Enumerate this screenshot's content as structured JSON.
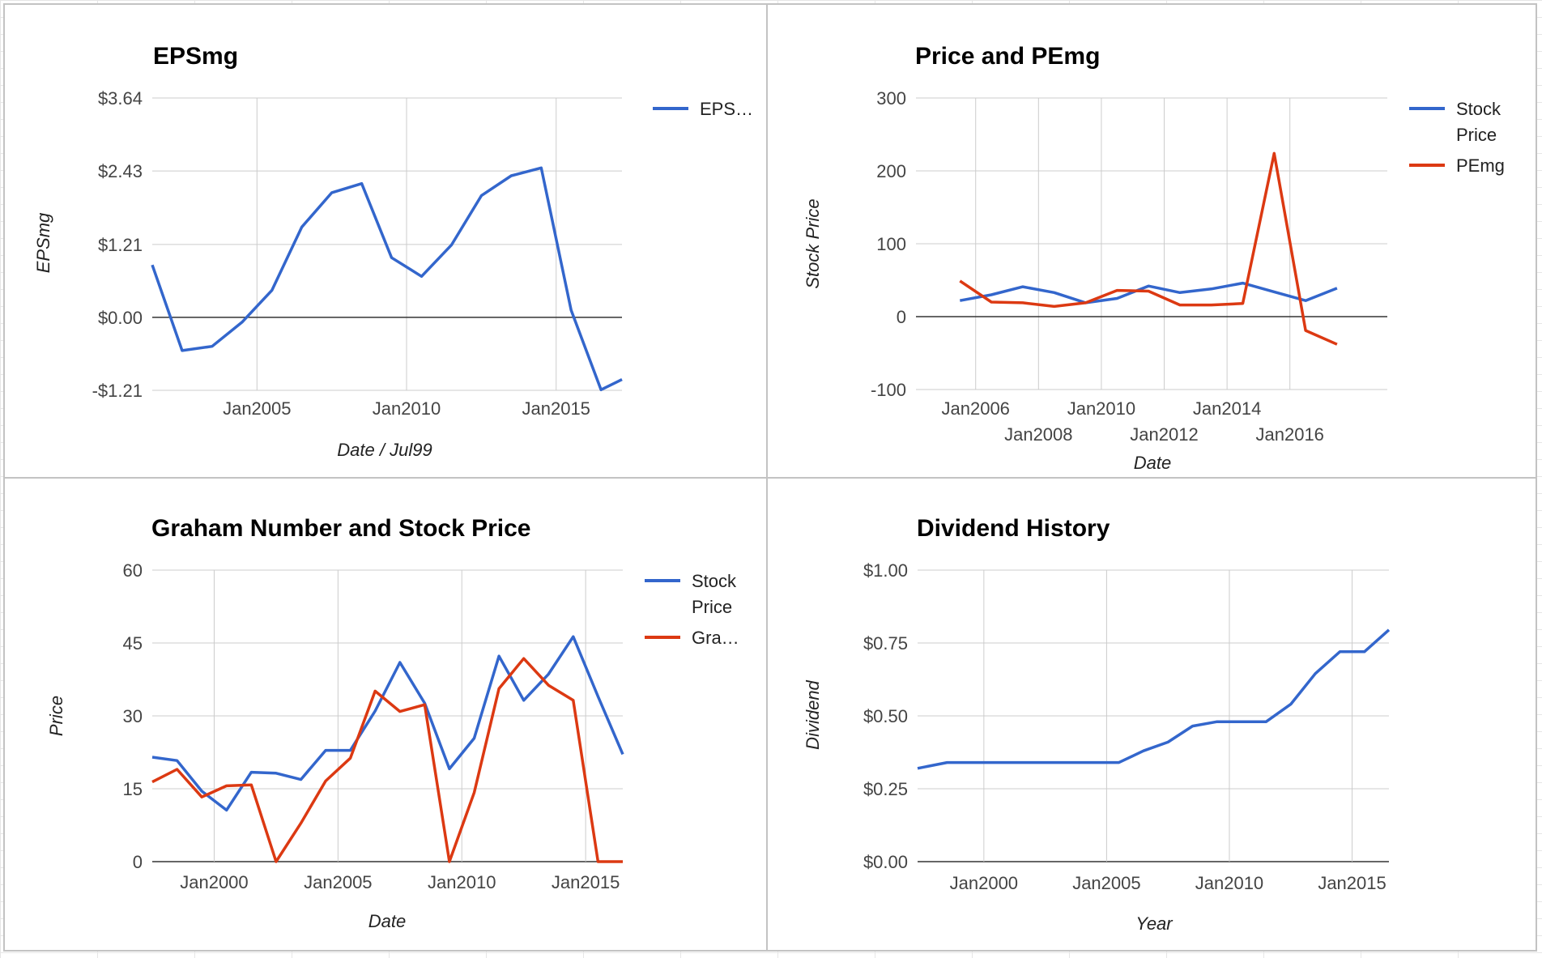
{
  "colors": {
    "blue": "#3366cc",
    "red": "#dc3912",
    "grid": "#cccccc",
    "zero": "#333333"
  },
  "chart_data": [
    {
      "type": "line",
      "title": "EPSmg",
      "xlabel": "Date / Jul99",
      "ylabel": "EPSmg",
      "xlim": [
        2001.5,
        2017.2
      ],
      "ylim": [
        -1.21,
        3.64
      ],
      "yticks": [
        3.64,
        2.43,
        1.21,
        0.0,
        -1.21
      ],
      "ytick_labels": [
        "$3.64",
        "$2.43",
        "$1.21",
        "$0.00",
        "-$1.21"
      ],
      "xticks": [
        2005,
        2010,
        2015
      ],
      "xtick_labels": [
        "Jan2005",
        "Jan2010",
        "Jan2015"
      ],
      "grid": true,
      "legend": "right",
      "series": [
        {
          "name": "EPS…",
          "color": "#3366cc",
          "x": [
            2001.5,
            2002.5,
            2003.5,
            2004.5,
            2005.5,
            2006.5,
            2007.5,
            2008.5,
            2009.5,
            2010.5,
            2011.5,
            2012.5,
            2013.5,
            2014.5,
            2015.5,
            2016.5,
            2017.2
          ],
          "y": [
            0.87,
            -0.55,
            -0.48,
            -0.08,
            0.45,
            1.5,
            2.07,
            2.22,
            0.99,
            0.68,
            1.2,
            2.02,
            2.35,
            2.48,
            0.12,
            -1.2,
            -1.03
          ]
        }
      ]
    },
    {
      "type": "line",
      "title": "Price and PEmg",
      "xlabel": "Date",
      "ylabel": "Stock Price",
      "xlim": [
        2004.1,
        2019.1
      ],
      "ylim": [
        -100,
        300
      ],
      "yticks": [
        300,
        200,
        100,
        0,
        -100
      ],
      "ytick_labels": [
        "300",
        "200",
        "100",
        "0",
        "-100"
      ],
      "xticks": [
        2006,
        2008,
        2010,
        2012,
        2014,
        2016
      ],
      "xtick_labels": [
        "Jan2006",
        "Jan2008",
        "Jan2010",
        "Jan2012",
        "Jan2014",
        "Jan2016"
      ],
      "grid": true,
      "legend": "right",
      "series": [
        {
          "name": "Stock Price",
          "color": "#3366cc",
          "x": [
            2005.5,
            2006.5,
            2007.5,
            2008.5,
            2009.5,
            2010.5,
            2011.5,
            2012.5,
            2013.5,
            2014.5,
            2015.5,
            2016.5,
            2017.5
          ],
          "y": [
            22,
            30,
            41,
            33,
            19,
            25,
            42,
            33,
            38,
            46,
            34,
            22,
            39
          ]
        },
        {
          "name": "PEmg",
          "color": "#dc3912",
          "x": [
            2005.5,
            2006.5,
            2007.5,
            2008.5,
            2009.5,
            2010.5,
            2011.5,
            2012.5,
            2013.5,
            2014.5,
            2015.5,
            2016.5,
            2017.5
          ],
          "y": [
            49,
            20,
            19,
            14,
            19,
            36,
            35,
            16,
            16,
            18,
            224,
            -19,
            -38
          ]
        }
      ]
    },
    {
      "type": "line",
      "title": "Graham Number and Stock Price",
      "xlabel": "Date",
      "ylabel": "Price",
      "xlim": [
        1997.5,
        2016.5
      ],
      "ylim": [
        0,
        60
      ],
      "yticks": [
        60,
        45,
        30,
        15,
        0
      ],
      "ytick_labels": [
        "60",
        "45",
        "30",
        "15",
        "0"
      ],
      "xticks": [
        2000,
        2005,
        2010,
        2015
      ],
      "xtick_labels": [
        "Jan2000",
        "Jan2005",
        "Jan2010",
        "Jan2015"
      ],
      "grid": true,
      "legend": "right",
      "series": [
        {
          "name": "Stock Price",
          "color": "#3366cc",
          "x": [
            1997.5,
            1998.5,
            1999.5,
            2000.5,
            2001.5,
            2002.5,
            2003.5,
            2004.5,
            2005.5,
            2006.5,
            2007.5,
            2008.5,
            2009.5,
            2010.5,
            2011.5,
            2012.5,
            2013.5,
            2014.5,
            2015.5,
            2016.5
          ],
          "y": [
            21.5,
            20.8,
            14.5,
            10.6,
            18.4,
            18.2,
            16.9,
            22.9,
            22.9,
            31,
            41,
            32.6,
            19.1,
            25.4,
            42.3,
            33.2,
            38.6,
            46.3,
            34,
            22.1
          ]
        },
        {
          "name": "Gra…",
          "color": "#dc3912",
          "x": [
            1997.5,
            1998.5,
            1999.5,
            2000.5,
            2001.5,
            2002.5,
            2003.5,
            2004.5,
            2005.5,
            2006.5,
            2007.5,
            2008.5,
            2009.5,
            2010.5,
            2011.5,
            2012.5,
            2013.5,
            2014.5,
            2015.5,
            2016.5
          ],
          "y": [
            16.4,
            19,
            13.3,
            15.6,
            15.8,
            0,
            7.9,
            16.6,
            21.3,
            35.1,
            30.9,
            32.3,
            0,
            14.2,
            35.6,
            41.8,
            36.3,
            33.2,
            0,
            0
          ]
        }
      ]
    },
    {
      "type": "line",
      "title": "Dividend History",
      "xlabel": "Year",
      "ylabel": "Dividend",
      "xlim": [
        1997.3,
        2016.5
      ],
      "ylim": [
        0,
        1
      ],
      "yticks": [
        1.0,
        0.75,
        0.5,
        0.25,
        0.0
      ],
      "ytick_labels": [
        "$1.00",
        "$0.75",
        "$0.50",
        "$0.25",
        "$0.00"
      ],
      "xticks": [
        2000,
        2005,
        2010,
        2015
      ],
      "xtick_labels": [
        "Jan2000",
        "Jan2005",
        "Jan2010",
        "Jan2015"
      ],
      "grid": true,
      "legend": "none",
      "series": [
        {
          "color": "#3366cc",
          "x": [
            1997.3,
            1998.5,
            1999.5,
            2000.5,
            2001.5,
            2002.5,
            2003.5,
            2004.5,
            2005.5,
            2006.5,
            2007.5,
            2008.5,
            2009.5,
            2010.5,
            2011.5,
            2012.5,
            2013.5,
            2014.5,
            2015.5,
            2016.5
          ],
          "y": [
            0.32,
            0.34,
            0.34,
            0.34,
            0.34,
            0.34,
            0.34,
            0.34,
            0.34,
            0.38,
            0.41,
            0.465,
            0.48,
            0.48,
            0.48,
            0.54,
            0.645,
            0.72,
            0.72,
            0.795
          ]
        }
      ]
    }
  ]
}
